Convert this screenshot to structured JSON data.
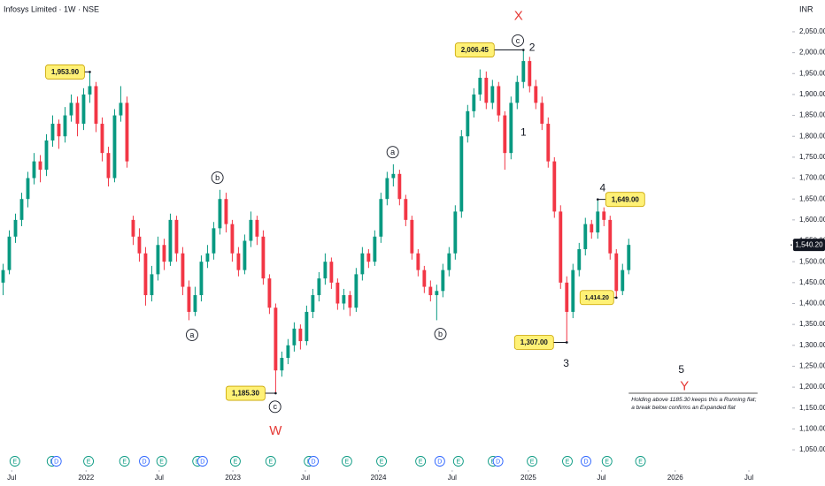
{
  "chart_data": {
    "type": "candlestick",
    "title": "Infosys Limited · 1W · NSE",
    "currency": "INR",
    "up_color": "#089981",
    "down_color": "#f23645",
    "xlim": [
      -0.5,
      127.4
    ],
    "xticks": [
      {
        "value": 1.4,
        "label": "Jul"
      },
      {
        "value": 13.4,
        "label": "2022"
      },
      {
        "value": 25.2,
        "label": "Jul"
      },
      {
        "value": 37.1,
        "label": "2023"
      },
      {
        "value": 48.8,
        "label": "Jul"
      },
      {
        "value": 60.6,
        "label": "2024"
      },
      {
        "value": 72.5,
        "label": "Jul"
      },
      {
        "value": 84.8,
        "label": "2025"
      },
      {
        "value": 96.6,
        "label": "Jul"
      },
      {
        "value": 108.5,
        "label": "2026"
      },
      {
        "value": 120.4,
        "label": "Jul"
      }
    ],
    "ylim": [
      1010,
      2126
    ],
    "yticks": [
      {
        "value": 1050,
        "label": "1,050.00"
      },
      {
        "value": 1100,
        "label": "1,100.00"
      },
      {
        "value": 1150,
        "label": "1,150.00"
      },
      {
        "value": 1200,
        "label": "1,200.00"
      },
      {
        "value": 1250,
        "label": "1,250.00"
      },
      {
        "value": 1300,
        "label": "1,300.00"
      },
      {
        "value": 1350,
        "label": "1,350.00"
      },
      {
        "value": 1400,
        "label": "1,400.00"
      },
      {
        "value": 1450,
        "label": "1,450.00"
      },
      {
        "value": 1500,
        "label": "1,500.00"
      },
      {
        "value": 1550,
        "label": "1,550.00"
      },
      {
        "value": 1600,
        "label": "1,600.00"
      },
      {
        "value": 1650,
        "label": "1,650.00"
      },
      {
        "value": 1700,
        "label": "1,700.00"
      },
      {
        "value": 1750,
        "label": "1,750.00"
      },
      {
        "value": 1800,
        "label": "1,800.00"
      },
      {
        "value": 1850,
        "label": "1,850.00"
      },
      {
        "value": 1900,
        "label": "1,900.00"
      },
      {
        "value": 1950,
        "label": "1,950.00"
      },
      {
        "value": 2000,
        "label": "2,000.00"
      },
      {
        "value": 2050,
        "label": "2,050.00"
      }
    ],
    "last_price": {
      "value": 1540.2,
      "label": "1,540.20"
    },
    "candles": [
      [
        1450,
        1495,
        1420,
        1480
      ],
      [
        1480,
        1575,
        1470,
        1560
      ],
      [
        1560,
        1615,
        1545,
        1600
      ],
      [
        1600,
        1665,
        1585,
        1650
      ],
      [
        1650,
        1715,
        1630,
        1700
      ],
      [
        1700,
        1760,
        1685,
        1740
      ],
      [
        1740,
        1755,
        1690,
        1720
      ],
      [
        1720,
        1805,
        1705,
        1790
      ],
      [
        1790,
        1850,
        1775,
        1830
      ],
      [
        1830,
        1840,
        1770,
        1800
      ],
      [
        1800,
        1870,
        1785,
        1850
      ],
      [
        1850,
        1900,
        1835,
        1880
      ],
      [
        1880,
        1895,
        1800,
        1830
      ],
      [
        1830,
        1915,
        1815,
        1900
      ],
      [
        1900,
        1953.9,
        1880,
        1920
      ],
      [
        1920,
        1930,
        1810,
        1830
      ],
      [
        1830,
        1845,
        1740,
        1760
      ],
      [
        1760,
        1775,
        1680,
        1700
      ],
      [
        1700,
        1865,
        1690,
        1850
      ],
      [
        1850,
        1920,
        1835,
        1880
      ],
      [
        1880,
        1895,
        1725,
        1740
      ],
      [
        1600,
        1610,
        1540,
        1560
      ],
      [
        1560,
        1580,
        1500,
        1520
      ],
      [
        1520,
        1535,
        1395,
        1420
      ],
      [
        1420,
        1490,
        1405,
        1470
      ],
      [
        1470,
        1560,
        1455,
        1540
      ],
      [
        1540,
        1555,
        1480,
        1500
      ],
      [
        1500,
        1615,
        1490,
        1600
      ],
      [
        1600,
        1610,
        1500,
        1520
      ],
      [
        1520,
        1535,
        1420,
        1440
      ],
      [
        1440,
        1455,
        1360,
        1380
      ],
      [
        1380,
        1440,
        1370,
        1420
      ],
      [
        1420,
        1515,
        1405,
        1500
      ],
      [
        1500,
        1540,
        1485,
        1520
      ],
      [
        1520,
        1595,
        1505,
        1580
      ],
      [
        1580,
        1672,
        1565,
        1650
      ],
      [
        1650,
        1665,
        1570,
        1590
      ],
      [
        1590,
        1600,
        1500,
        1520
      ],
      [
        1520,
        1535,
        1465,
        1480
      ],
      [
        1480,
        1565,
        1470,
        1550
      ],
      [
        1550,
        1620,
        1535,
        1600
      ],
      [
        1600,
        1610,
        1540,
        1560
      ],
      [
        1560,
        1575,
        1445,
        1460
      ],
      [
        1460,
        1470,
        1375,
        1390
      ],
      [
        1390,
        1400,
        1185.3,
        1240
      ],
      [
        1240,
        1285,
        1225,
        1270
      ],
      [
        1270,
        1315,
        1255,
        1300
      ],
      [
        1300,
        1355,
        1285,
        1340
      ],
      [
        1340,
        1350,
        1290,
        1310
      ],
      [
        1310,
        1395,
        1300,
        1380
      ],
      [
        1380,
        1435,
        1365,
        1420
      ],
      [
        1420,
        1475,
        1405,
        1460
      ],
      [
        1460,
        1520,
        1445,
        1500
      ],
      [
        1500,
        1510,
        1435,
        1450
      ],
      [
        1450,
        1460,
        1385,
        1400
      ],
      [
        1400,
        1435,
        1385,
        1420
      ],
      [
        1420,
        1430,
        1370,
        1390
      ],
      [
        1390,
        1485,
        1380,
        1470
      ],
      [
        1470,
        1535,
        1455,
        1520
      ],
      [
        1520,
        1530,
        1485,
        1500
      ],
      [
        1500,
        1575,
        1490,
        1560
      ],
      [
        1560,
        1665,
        1545,
        1650
      ],
      [
        1650,
        1715,
        1635,
        1700
      ],
      [
        1700,
        1733,
        1680,
        1710
      ],
      [
        1710,
        1720,
        1635,
        1650
      ],
      [
        1650,
        1660,
        1585,
        1600
      ],
      [
        1600,
        1610,
        1505,
        1520
      ],
      [
        1520,
        1530,
        1465,
        1480
      ],
      [
        1480,
        1490,
        1425,
        1440
      ],
      [
        1440,
        1455,
        1405,
        1420
      ],
      [
        1420,
        1445,
        1360,
        1430
      ],
      [
        1430,
        1495,
        1415,
        1480
      ],
      [
        1480,
        1535,
        1465,
        1520
      ],
      [
        1520,
        1635,
        1505,
        1620
      ],
      [
        1620,
        1815,
        1605,
        1800
      ],
      [
        1800,
        1875,
        1785,
        1860
      ],
      [
        1860,
        1915,
        1845,
        1900
      ],
      [
        1900,
        1960,
        1885,
        1940
      ],
      [
        1940,
        1955,
        1865,
        1880
      ],
      [
        1880,
        1935,
        1865,
        1920
      ],
      [
        1920,
        1930,
        1835,
        1850
      ],
      [
        1850,
        1860,
        1720,
        1760
      ],
      [
        1760,
        1895,
        1745,
        1880
      ],
      [
        1880,
        1945,
        1865,
        1930
      ],
      [
        1930,
        2006.45,
        1915,
        1980
      ],
      [
        1980,
        1990,
        1905,
        1920
      ],
      [
        1920,
        1935,
        1865,
        1880
      ],
      [
        1880,
        1895,
        1815,
        1830
      ],
      [
        1830,
        1845,
        1725,
        1740
      ],
      [
        1740,
        1750,
        1605,
        1620
      ],
      [
        1620,
        1635,
        1435,
        1450
      ],
      [
        1450,
        1465,
        1307,
        1380
      ],
      [
        1380,
        1495,
        1365,
        1480
      ],
      [
        1480,
        1545,
        1465,
        1530
      ],
      [
        1530,
        1605,
        1515,
        1590
      ],
      [
        1590,
        1600,
        1555,
        1570
      ],
      [
        1570,
        1649,
        1555,
        1620
      ],
      [
        1620,
        1630,
        1585,
        1600
      ],
      [
        1600,
        1610,
        1505,
        1520
      ],
      [
        1520,
        1530,
        1414.2,
        1430
      ],
      [
        1430,
        1495,
        1420,
        1480
      ],
      [
        1480,
        1555,
        1470,
        1540.2
      ]
    ],
    "price_labels": [
      {
        "x": 14,
        "value": 1953.9,
        "label": "1,953.90"
      },
      {
        "x": 84,
        "value": 2006.45,
        "label": "2,006.45"
      },
      {
        "x": 96,
        "value": 1649,
        "label": "1,649.00"
      },
      {
        "x": 99,
        "value": 1414.2,
        "label": "1,414.20"
      },
      {
        "x": 91,
        "value": 1307,
        "label": "1,307.00"
      },
      {
        "x": 44,
        "value": 1185.3,
        "label": "1,185.30"
      }
    ],
    "wave_labels": [
      {
        "text": "X",
        "x": 83.2,
        "y": 2088,
        "style": "major"
      },
      {
        "text": "W",
        "x": 44,
        "y": 1096,
        "style": "major"
      },
      {
        "text": "Y",
        "x": 110,
        "y": 1202,
        "style": "major"
      },
      {
        "text": "c",
        "x": 83.1,
        "y": 2029,
        "style": "circled"
      },
      {
        "text": "a",
        "x": 62.9,
        "y": 1762,
        "style": "circled"
      },
      {
        "text": "b",
        "x": 34.6,
        "y": 1701,
        "style": "circled"
      },
      {
        "text": "a",
        "x": 30.5,
        "y": 1325,
        "style": "circled"
      },
      {
        "text": "b",
        "x": 70.6,
        "y": 1327,
        "style": "circled"
      },
      {
        "text": "c",
        "x": 43.9,
        "y": 1153,
        "style": "circled"
      },
      {
        "text": "1",
        "x": 84,
        "y": 1809,
        "style": "minor"
      },
      {
        "text": "2",
        "x": 85.4,
        "y": 2012,
        "style": "minor"
      },
      {
        "text": "3",
        "x": 90.9,
        "y": 1257,
        "style": "minor"
      },
      {
        "text": "4",
        "x": 96.8,
        "y": 1676,
        "style": "minor"
      },
      {
        "text": "5",
        "x": 109.5,
        "y": 1242,
        "style": "minor"
      }
    ],
    "note": {
      "level": 1185.3,
      "x": [
        101,
        121.8
      ],
      "lines": [
        "Holding above 1185.30 keeps this a Running flat;",
        "a break below confirms an Expanded flat"
      ]
    },
    "events": [
      {
        "x": 1.9,
        "label": "E"
      },
      {
        "x": 7.9,
        "label": "E"
      },
      {
        "x": 8.6,
        "label": "D"
      },
      {
        "x": 13.8,
        "label": "E"
      },
      {
        "x": 19.6,
        "label": "E"
      },
      {
        "x": 22.8,
        "label": "D"
      },
      {
        "x": 25.6,
        "label": "E"
      },
      {
        "x": 31.4,
        "label": "E"
      },
      {
        "x": 32.2,
        "label": "D"
      },
      {
        "x": 37.5,
        "label": "E"
      },
      {
        "x": 43.2,
        "label": "E"
      },
      {
        "x": 49.4,
        "label": "E"
      },
      {
        "x": 50.1,
        "label": "D"
      },
      {
        "x": 55.5,
        "label": "E"
      },
      {
        "x": 61.1,
        "label": "E"
      },
      {
        "x": 67.4,
        "label": "E"
      },
      {
        "x": 70.5,
        "label": "D"
      },
      {
        "x": 73.5,
        "label": "E"
      },
      {
        "x": 79.1,
        "label": "E"
      },
      {
        "x": 79.9,
        "label": "D"
      },
      {
        "x": 85.4,
        "label": "E"
      },
      {
        "x": 91.1,
        "label": "E"
      },
      {
        "x": 94.1,
        "label": "D"
      },
      {
        "x": 97.5,
        "label": "E"
      },
      {
        "x": 102.9,
        "label": "E"
      }
    ]
  }
}
